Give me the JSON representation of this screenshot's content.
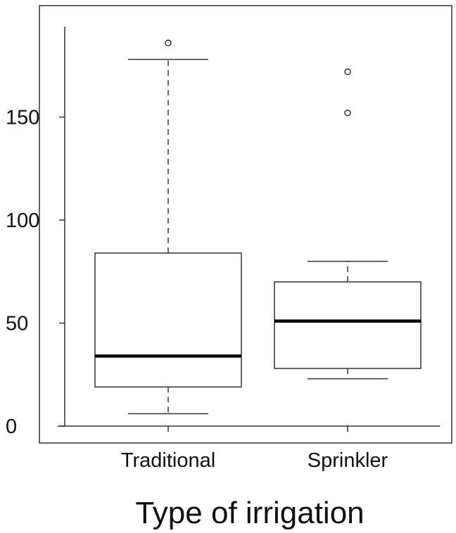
{
  "chart_data": {
    "type": "boxplot",
    "title": "",
    "xlabel": "Type of irrigation",
    "ylabel": "",
    "ylim": [
      0,
      195
    ],
    "yticks": [
      0,
      50,
      100,
      150
    ],
    "categories": [
      "Traditional",
      "Sprinkler"
    ],
    "boxes": [
      {
        "category": "Traditional",
        "whisker_low": 6,
        "q1": 19,
        "median": 34,
        "q3": 84,
        "whisker_high": 178,
        "outliers": [
          186
        ]
      },
      {
        "category": "Sprinkler",
        "whisker_low": 23,
        "q1": 28,
        "median": 51,
        "q3": 70,
        "whisker_high": 80,
        "outliers": [
          152,
          172
        ]
      }
    ],
    "grid": false,
    "legend": "none"
  }
}
